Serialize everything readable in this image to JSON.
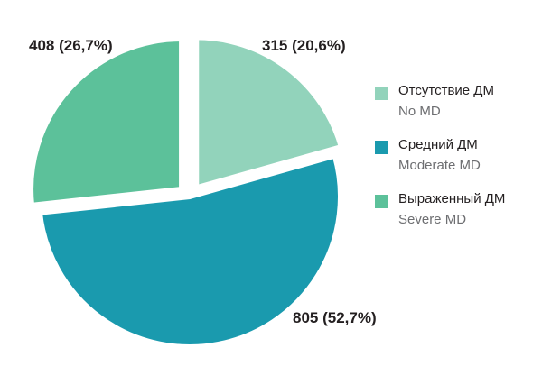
{
  "chart_data": {
    "type": "pie",
    "title": "",
    "slices": [
      {
        "label": "Отсутствие ДМ",
        "label_en": "No MD",
        "value": 315,
        "percent": "20,6%",
        "text": "315 (20,6%)",
        "color": "#92d3bb",
        "exploded": true
      },
      {
        "label": "Средний ДМ",
        "label_en": "Moderate MD",
        "value": 805,
        "percent": "52,7%",
        "text": "805 (52,7%)",
        "color": "#1a9aae",
        "exploded": false
      },
      {
        "label": "Выраженный ДМ",
        "label_en": "Severe MD",
        "value": 408,
        "percent": "26,7%",
        "text": "408 (26,7%)",
        "color": "#5cc19a",
        "exploded": true
      }
    ],
    "legend_position": "right"
  }
}
